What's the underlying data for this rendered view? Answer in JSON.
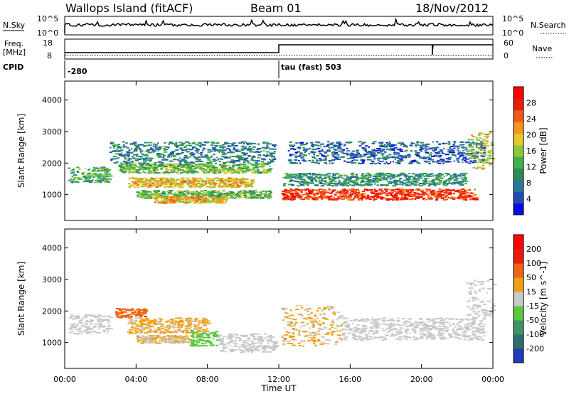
{
  "header": {
    "site": "Wallops Island (fitACF)",
    "beam": "Beam 01",
    "date": "18/Nov/2012"
  },
  "top_panels": {
    "nsky_label": "N.Sky",
    "nsky_ticks": [
      "10^5",
      "10^0"
    ],
    "nsearch_label": "N.Search",
    "nsearch_ticks": [
      "10^5",
      "10^0"
    ],
    "freq_label_line1": "Freq.",
    "freq_label_line2": "[MHz]",
    "freq_ticks": [
      "18",
      "8"
    ],
    "nave_label": "Nave",
    "nave_ticks": [
      "60",
      "0"
    ],
    "cpid_label": "CPID",
    "cpid_before": "-280",
    "cpid_after": "tau (fast) 503",
    "cpid_change_time": 12.0
  },
  "x_axis": {
    "label": "Time UT",
    "ticks": [
      "00:00",
      "04:00",
      "08:00",
      "12:00",
      "16:00",
      "20:00",
      "00:00"
    ],
    "range_hours": [
      0,
      24
    ]
  },
  "chart_data": [
    {
      "type": "heatmap",
      "panel": "power",
      "xlabel": "Time UT",
      "ylabel": "Slant Range [km]",
      "yticks": [
        "1000",
        "2000",
        "3000",
        "4000"
      ],
      "ylim": [
        180,
        4600
      ],
      "xlim": [
        0,
        24
      ],
      "colorbar": {
        "label": "Power [dB]",
        "ticks": [
          "4",
          "8",
          "12",
          "16",
          "20",
          "24",
          "28"
        ],
        "range": [
          0,
          32
        ],
        "colors": [
          "#0a0ae6",
          "#1e50b4",
          "#2d7896",
          "#2e8b57",
          "#3cb44b",
          "#8cc83c",
          "#e6c828",
          "#f5961e",
          "#f05a14",
          "#e61e0a",
          "#ff0000"
        ]
      },
      "bands": [
        {
          "t": [
            0.2,
            2.5
          ],
          "r": [
            1400,
            1900
          ],
          "v": 12
        },
        {
          "t": [
            2.5,
            11.8
          ],
          "r": [
            2000,
            2700
          ],
          "v": 8
        },
        {
          "t": [
            3.0,
            11.5
          ],
          "r": [
            1700,
            2000
          ],
          "v": 14
        },
        {
          "t": [
            3.5,
            10.5
          ],
          "r": [
            1250,
            1550
          ],
          "v": 20
        },
        {
          "t": [
            4.0,
            11.5
          ],
          "r": [
            900,
            1150
          ],
          "v": 14
        },
        {
          "t": [
            5.0,
            9.0
          ],
          "r": [
            750,
            950
          ],
          "v": 20
        },
        {
          "t": [
            12.1,
            23.0
          ],
          "r": [
            850,
            1200
          ],
          "v": 27
        },
        {
          "t": [
            12.2,
            22.5
          ],
          "r": [
            1300,
            1700
          ],
          "v": 10
        },
        {
          "t": [
            12.5,
            23.5
          ],
          "r": [
            2000,
            2700
          ],
          "v": 6
        },
        {
          "t": [
            22.5,
            24.0
          ],
          "r": [
            1800,
            3000
          ],
          "v": 18
        }
      ]
    },
    {
      "type": "heatmap",
      "panel": "velocity",
      "xlabel": "Time UT",
      "ylabel": "Slant Range [km]",
      "yticks": [
        "1000",
        "2000",
        "3000",
        "4000"
      ],
      "ylim": [
        180,
        4600
      ],
      "xlim": [
        0,
        24
      ],
      "colorbar": {
        "label": "Velocity [m s^-1]",
        "ticks": [
          "200",
          "100",
          "50",
          "15",
          "-15",
          "-50",
          "-100",
          "-200"
        ],
        "range": [
          -250,
          250
        ],
        "colors": [
          "#1e3cb4",
          "#2d6e6e",
          "#3c9664",
          "#5ac83c",
          "#c8c8c8",
          "#f0a014",
          "#f06414",
          "#e61e0a",
          "#ff0000"
        ]
      },
      "bands": [
        {
          "t": [
            0.2,
            2.5
          ],
          "r": [
            1300,
            1900
          ],
          "v": 0
        },
        {
          "t": [
            2.8,
            4.5
          ],
          "r": [
            1800,
            2100
          ],
          "v": 120
        },
        {
          "t": [
            3.5,
            8.0
          ],
          "r": [
            1300,
            1800
          ],
          "v": 40
        },
        {
          "t": [
            4.0,
            7.0
          ],
          "r": [
            1000,
            1250
          ],
          "v": 30
        },
        {
          "t": [
            7.0,
            8.5
          ],
          "r": [
            900,
            1400
          ],
          "v": -60
        },
        {
          "t": [
            8.5,
            11.8
          ],
          "r": [
            700,
            1300
          ],
          "v": 0
        },
        {
          "t": [
            12.1,
            15.5
          ],
          "r": [
            900,
            2200
          ],
          "v": 30
        },
        {
          "t": [
            15.5,
            23.5
          ],
          "r": [
            1100,
            1800
          ],
          "v": 0
        },
        {
          "t": [
            22.5,
            24.0
          ],
          "r": [
            1800,
            3000
          ],
          "v": 0
        }
      ]
    }
  ]
}
